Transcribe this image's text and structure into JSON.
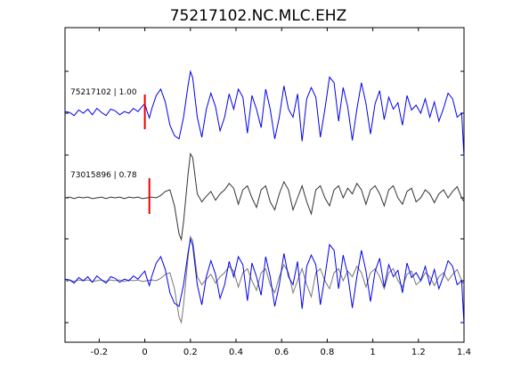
{
  "chart_data": {
    "type": "line",
    "title": "75217102.NC.MLC.EHZ",
    "xlabel": "",
    "ylabel": "",
    "xlim": [
      -0.35,
      1.4
    ],
    "xticks": [
      -0.2,
      0,
      0.2,
      0.4,
      0.6,
      0.8,
      1,
      1.2,
      1.4
    ],
    "xtick_labels": [
      "-0.2",
      "0",
      "0.2",
      "0.4",
      "0.6",
      "0.8",
      "1",
      "1.2",
      "1.4"
    ],
    "grid": false,
    "traces": [
      {
        "label": "75217102 | 1.00",
        "color": "#0000ee",
        "pick_time": 0.0,
        "baseline": 3
      },
      {
        "label": "73015896 | 0.78",
        "color": "#333333",
        "pick_time": 0.02,
        "baseline": 2
      },
      {
        "label": "",
        "color": "overlay",
        "pick_time": null,
        "baseline": 1
      }
    ],
    "series": [
      {
        "values": [
          [
            -0.35,
            0.02
          ],
          [
            -0.33,
            0.01
          ],
          [
            -0.31,
            -0.03
          ],
          [
            -0.29,
            0.04
          ],
          [
            -0.27,
            0.0
          ],
          [
            -0.25,
            0.05
          ],
          [
            -0.23,
            -0.02
          ],
          [
            -0.21,
            0.06
          ],
          [
            -0.19,
            0.01
          ],
          [
            -0.17,
            -0.03
          ],
          [
            -0.15,
            0.05
          ],
          [
            -0.13,
            0.03
          ],
          [
            -0.11,
            -0.02
          ],
          [
            -0.09,
            0.02
          ],
          [
            -0.07,
            0.0
          ],
          [
            -0.05,
            0.06
          ],
          [
            -0.03,
            0.02
          ],
          [
            -0.01,
            0.09
          ],
          [
            0.0,
            0.12
          ],
          [
            0.01,
            0.02
          ],
          [
            0.02,
            -0.06
          ],
          [
            0.03,
            0.05
          ],
          [
            0.05,
            0.22
          ],
          [
            0.07,
            0.3
          ],
          [
            0.09,
            0.14
          ],
          [
            0.11,
            -0.15
          ],
          [
            0.13,
            -0.28
          ],
          [
            0.15,
            -0.32
          ],
          [
            0.17,
            -0.05
          ],
          [
            0.19,
            0.35
          ],
          [
            0.2,
            0.52
          ],
          [
            0.21,
            0.44
          ],
          [
            0.23,
            -0.05
          ],
          [
            0.25,
            -0.3
          ],
          [
            0.27,
            0.05
          ],
          [
            0.29,
            0.25
          ],
          [
            0.31,
            0.08
          ],
          [
            0.33,
            -0.22
          ],
          [
            0.35,
            -0.05
          ],
          [
            0.37,
            0.24
          ],
          [
            0.39,
            0.05
          ],
          [
            0.41,
            0.3
          ],
          [
            0.43,
            0.2
          ],
          [
            0.45,
            -0.25
          ],
          [
            0.47,
            0.22
          ],
          [
            0.49,
            0.05
          ],
          [
            0.51,
            -0.18
          ],
          [
            0.53,
            0.3
          ],
          [
            0.55,
            0.05
          ],
          [
            0.57,
            -0.32
          ],
          [
            0.59,
            -0.05
          ],
          [
            0.61,
            0.34
          ],
          [
            0.63,
            0.05
          ],
          [
            0.65,
            -0.05
          ],
          [
            0.67,
            0.24
          ],
          [
            0.69,
            -0.35
          ],
          [
            0.71,
            0.18
          ],
          [
            0.73,
            0.32
          ],
          [
            0.75,
            0.2
          ],
          [
            0.77,
            -0.3
          ],
          [
            0.79,
            0.05
          ],
          [
            0.81,
            0.45
          ],
          [
            0.83,
            0.38
          ],
          [
            0.85,
            -0.1
          ],
          [
            0.87,
            0.32
          ],
          [
            0.89,
            0.08
          ],
          [
            0.91,
            -0.34
          ],
          [
            0.93,
            0.05
          ],
          [
            0.95,
            0.38
          ],
          [
            0.97,
            0.12
          ],
          [
            0.99,
            -0.26
          ],
          [
            1.01,
            0.12
          ],
          [
            1.03,
            0.28
          ],
          [
            1.05,
            -0.08
          ],
          [
            1.07,
            0.2
          ],
          [
            1.09,
            0.05
          ],
          [
            1.11,
            0.13
          ],
          [
            1.13,
            -0.15
          ],
          [
            1.15,
            0.22
          ],
          [
            1.17,
            0.04
          ],
          [
            1.19,
            0.1
          ],
          [
            1.21,
            0.0
          ],
          [
            1.23,
            0.18
          ],
          [
            1.25,
            -0.05
          ],
          [
            1.27,
            0.14
          ],
          [
            1.29,
            -0.1
          ],
          [
            1.31,
            0.06
          ],
          [
            1.33,
            0.25
          ],
          [
            1.35,
            0.18
          ],
          [
            1.37,
            -0.05
          ],
          [
            1.39,
            0.0
          ],
          [
            1.4,
            -0.55
          ]
        ]
      },
      {
        "values": [
          [
            -0.35,
            0.0
          ],
          [
            -0.33,
            0.01
          ],
          [
            -0.31,
            -0.01
          ],
          [
            -0.29,
            0.01
          ],
          [
            -0.27,
            0.0
          ],
          [
            -0.25,
            0.01
          ],
          [
            -0.23,
            -0.01
          ],
          [
            -0.21,
            0.0
          ],
          [
            -0.19,
            0.01
          ],
          [
            -0.17,
            -0.01
          ],
          [
            -0.15,
            0.01
          ],
          [
            -0.13,
            0.0
          ],
          [
            -0.11,
            0.01
          ],
          [
            -0.09,
            -0.01
          ],
          [
            -0.07,
            0.01
          ],
          [
            -0.05,
            0.0
          ],
          [
            -0.03,
            0.01
          ],
          [
            -0.01,
            -0.01
          ],
          [
            0.01,
            0.0
          ],
          [
            0.03,
            0.01
          ],
          [
            0.05,
            0.0
          ],
          [
            0.07,
            0.03
          ],
          [
            0.09,
            0.08
          ],
          [
            0.11,
            0.1
          ],
          [
            0.13,
            -0.1
          ],
          [
            0.15,
            -0.45
          ],
          [
            0.16,
            -0.52
          ],
          [
            0.17,
            -0.3
          ],
          [
            0.19,
            0.3
          ],
          [
            0.2,
            0.55
          ],
          [
            0.21,
            0.5
          ],
          [
            0.23,
            0.05
          ],
          [
            0.25,
            -0.05
          ],
          [
            0.27,
            0.02
          ],
          [
            0.29,
            0.08
          ],
          [
            0.31,
            -0.03
          ],
          [
            0.33,
            0.05
          ],
          [
            0.35,
            0.1
          ],
          [
            0.37,
            0.18
          ],
          [
            0.39,
            0.12
          ],
          [
            0.41,
            -0.08
          ],
          [
            0.43,
            0.1
          ],
          [
            0.45,
            0.15
          ],
          [
            0.47,
            0.0
          ],
          [
            0.49,
            -0.12
          ],
          [
            0.51,
            0.1
          ],
          [
            0.53,
            0.15
          ],
          [
            0.55,
            -0.05
          ],
          [
            0.57,
            -0.15
          ],
          [
            0.59,
            0.05
          ],
          [
            0.61,
            0.2
          ],
          [
            0.63,
            0.1
          ],
          [
            0.65,
            -0.15
          ],
          [
            0.67,
            0.0
          ],
          [
            0.69,
            0.15
          ],
          [
            0.71,
            -0.05
          ],
          [
            0.73,
            -0.2
          ],
          [
            0.75,
            0.1
          ],
          [
            0.77,
            0.15
          ],
          [
            0.79,
            0.0
          ],
          [
            0.81,
            -0.1
          ],
          [
            0.83,
            0.1
          ],
          [
            0.85,
            0.15
          ],
          [
            0.87,
            0.0
          ],
          [
            0.89,
            0.12
          ],
          [
            0.91,
            0.05
          ],
          [
            0.93,
            0.18
          ],
          [
            0.95,
            0.1
          ],
          [
            0.97,
            -0.08
          ],
          [
            0.99,
            0.1
          ],
          [
            1.01,
            0.15
          ],
          [
            1.03,
            0.05
          ],
          [
            1.05,
            -0.1
          ],
          [
            1.07,
            0.1
          ],
          [
            1.09,
            0.15
          ],
          [
            1.11,
            0.0
          ],
          [
            1.13,
            -0.08
          ],
          [
            1.15,
            0.08
          ],
          [
            1.17,
            0.12
          ],
          [
            1.19,
            -0.05
          ],
          [
            1.21,
            0.0
          ],
          [
            1.23,
            0.1
          ],
          [
            1.25,
            0.05
          ],
          [
            1.27,
            -0.06
          ],
          [
            1.29,
            0.05
          ],
          [
            1.31,
            0.1
          ],
          [
            1.33,
            0.0
          ],
          [
            1.35,
            0.08
          ],
          [
            1.37,
            0.14
          ],
          [
            1.39,
            0.0
          ],
          [
            1.4,
            -0.05
          ]
        ]
      }
    ],
    "pick_marker_color": "#ee0000"
  }
}
